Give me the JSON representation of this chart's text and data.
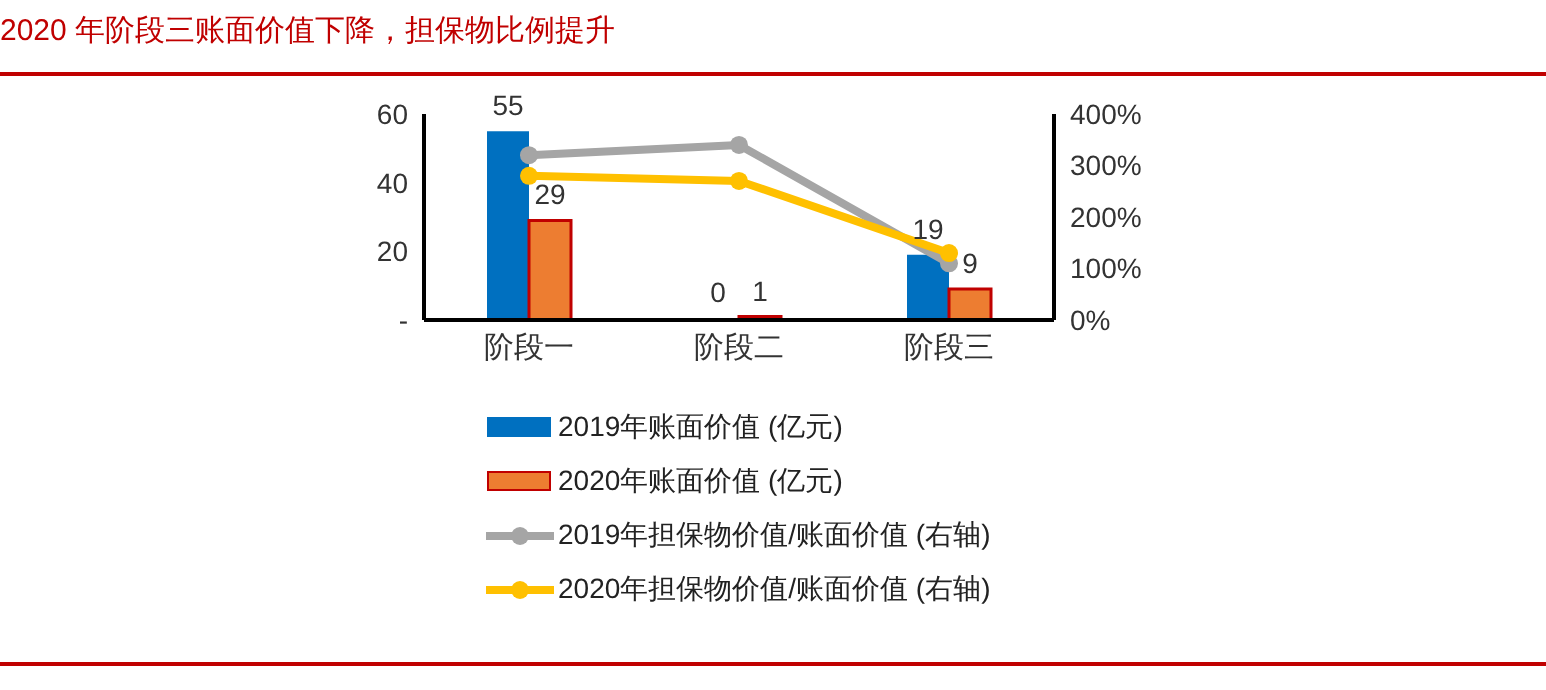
{
  "chart_data": {
    "type": "bar",
    "title": "2020 年阶段三账面价值下降，担保物比例提升",
    "categories": [
      "阶段一",
      "阶段二",
      "阶段三"
    ],
    "series": [
      {
        "name": "2019年账面价值 (亿元)",
        "color": "#0070c0",
        "values": [
          55,
          0,
          19
        ],
        "value_labels": [
          "55",
          "0",
          "19"
        ]
      },
      {
        "name": "2020年账面价值 (亿元)",
        "color": "#ed7d31",
        "values": [
          29,
          1,
          9
        ],
        "value_labels": [
          "29",
          "1",
          "9"
        ]
      },
      {
        "name": "2019年担保物价值/账面价值 (右轴)",
        "type": "line",
        "axis": "y2",
        "color": "#a5a5a5",
        "values": [
          320,
          340,
          110
        ]
      },
      {
        "name": "2020年担保物价值/账面价值 (右轴)",
        "type": "line",
        "axis": "y2",
        "color": "#ffc000",
        "values": [
          280,
          270,
          130
        ]
      }
    ],
    "ylim": [
      0,
      60
    ],
    "yticks": [
      {
        "value": 0,
        "label": "-"
      },
      20,
      40,
      60
    ],
    "y2lim": [
      0,
      400
    ],
    "y2ticks": [
      {
        "value": 0,
        "label": "0%"
      },
      {
        "value": 100,
        "label": "100%"
      },
      {
        "value": 200,
        "label": "200%"
      },
      {
        "value": 300,
        "label": "300%"
      },
      {
        "value": 400,
        "label": "400%"
      }
    ],
    "legend": "bottom",
    "grid": false,
    "marker": "circle"
  }
}
